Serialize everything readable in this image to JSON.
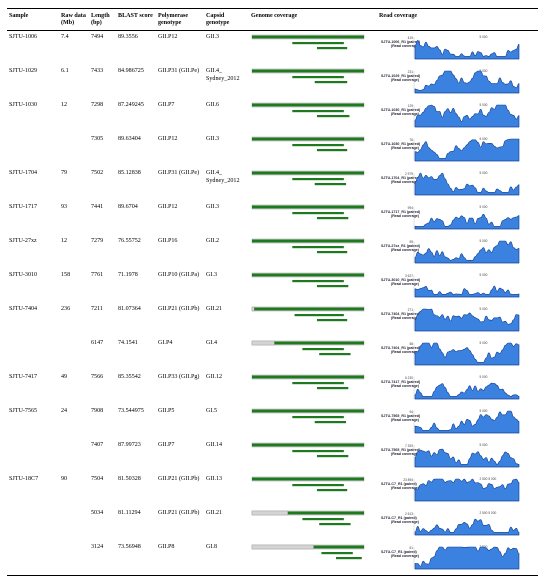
{
  "headers": {
    "sample": "Sample",
    "raw_data": "Raw data (Mb)",
    "length": "Length (bp)",
    "blast": "BLAST score",
    "polymerase": "Polymerase genotype",
    "capsid": "Capsid genotype",
    "genome_cov": "Genome coverage",
    "read_cov": "Read coverage"
  },
  "rows": [
    {
      "sample": "SJTU-1006",
      "raw": "7.4",
      "length": "7494",
      "blast": "89.3556",
      "pol": "GII.P12",
      "cap": "GII.3",
      "track": "SJTU-1006_R1 (paired)",
      "sub": "(Read coverage)",
      "ymax": "419",
      "tick": "5 000"
    },
    {
      "sample": "SJTU-1029",
      "raw": "6.1",
      "length": "7433",
      "blast": "84.986725",
      "pol": "GII.P31 (GII.Pe)",
      "cap": "GII.4_ Sydney_2012",
      "track": "SJTU-1029_R1 (paired)",
      "sub": "(Read coverage)",
      "ymax": "231",
      "tick": "5 000"
    },
    {
      "sample": "SJTU-1030",
      "raw": "12",
      "length": "7298",
      "blast": "87.249245",
      "pol": "GII.P7",
      "cap": "GII.6",
      "track": "SJTU-1030_R1 (paired)",
      "sub": "(Read coverage)",
      "ymax": "129",
      "tick": "5 000"
    },
    {
      "sample": "",
      "raw": "",
      "length": "7305",
      "blast": "89.63404",
      "pol": "GII.P12",
      "cap": "GII.3",
      "track": "SJTU-1030_R1 (paired)",
      "sub": "(Read coverage)",
      "ymax": "76",
      "tick": "5 000"
    },
    {
      "sample": "SJTU-1704",
      "raw": "79",
      "length": "7502",
      "blast": "85.12838",
      "pol": "GII.P31 (GII.Pe)",
      "cap": "GII.4_ Sydney_2012",
      "track": "SJTU-1704_R1 (paired)",
      "sub": "(Read coverage)",
      "ymax": "2 979",
      "tick": "5 000"
    },
    {
      "sample": "SJTU-1717",
      "raw": "93",
      "length": "7441",
      "blast": "89.6704",
      "pol": "GII.P12",
      "cap": "GII.3",
      "track": "SJTU-1717_R1 (paired)",
      "sub": "(Read coverage)",
      "ymax": "994",
      "tick": "5 000"
    },
    {
      "sample": "SJTU-27xz",
      "raw": "12",
      "length": "7279",
      "blast": "76.55752",
      "pol": "GII.P16",
      "cap": "GII.2",
      "track": "SJTU-27xz_R1 (paired)",
      "sub": "(Read coverage)",
      "ymax": "95",
      "tick": "5 000"
    },
    {
      "sample": "SJTU-3010",
      "raw": "158",
      "length": "7761",
      "blast": "71.1978",
      "pol": "GII.P10 (GII.Pa)",
      "cap": "GI.3",
      "track": "SJTU-3010_R1 (paired)",
      "sub": "(Read coverage)",
      "ymax": "3 627",
      "tick": "5 000"
    },
    {
      "sample": "SJTU-7404",
      "raw": "236",
      "length": "7211",
      "blast": "81.07364",
      "pol": "GII.P21 (GII.Pb)",
      "cap": "GII.21",
      "track": "SJTU-7404_R1 (paired)",
      "sub": "(Read coverage)",
      "ymax": "271",
      "tick": "5 000"
    },
    {
      "sample": "",
      "raw": "",
      "length": "6147",
      "blast": "74.1541",
      "pol": "GI.P4",
      "cap": "GI.4",
      "track": "SJTU-7404_R1 (paired)",
      "sub": "(Read coverage)",
      "ymax": "58",
      "tick": "5 000"
    },
    {
      "sample": "SJTU-7417",
      "raw": "49",
      "length": "7566",
      "blast": "85.35542",
      "pol": "GII.P33 (GII.Pg)",
      "cap": "GII.12",
      "track": "SJTU-7417_R1 (paired)",
      "sub": "(Read coverage)",
      "ymax": "6 230",
      "tick": "5 000"
    },
    {
      "sample": "SJTU-7565",
      "raw": "24",
      "length": "7908",
      "blast": "73.544975",
      "pol": "GII.P5",
      "cap": "GI.5",
      "track": "SJTU-7565_R1 (paired)",
      "sub": "(Read coverage)",
      "ymax": "94",
      "tick": "5 000"
    },
    {
      "sample": "",
      "raw": "",
      "length": "7407",
      "blast": "87.99723",
      "pol": "GII.P7",
      "cap": "GII.14",
      "track": "SJTU-7565_R1 (paired)",
      "sub": "(Read coverage)",
      "ymax": "7 393",
      "tick": "5 000"
    },
    {
      "sample": "SJTU-18C7",
      "raw": "90",
      "length": "7504",
      "blast": "81.50328",
      "pol": "GII.P21 (GII.Pb)",
      "cap": "GII.13",
      "track": "SJTU-C7_R1 (paired)",
      "sub": "(Read coverage)",
      "ymax": "23 894",
      "tick": "2 500   5 000"
    },
    {
      "sample": "",
      "raw": "",
      "length": "5034",
      "blast": "81.11294",
      "pol": "GII.P21 (GII.Pb)",
      "cap": "GII.21",
      "track": "SJTU-C7_R1 (paired)",
      "sub": "(Read coverage)",
      "ymax": "2 613",
      "tick": "2 500   5 000"
    },
    {
      "sample": "",
      "raw": "",
      "length": "3124",
      "blast": "73.56948",
      "pol": "GII.P8",
      "cap": "GI.8",
      "track": "SJTU-C7_R1 (paired)",
      "sub": "(Read coverage)",
      "ymax": "61",
      "tick": "2 500"
    }
  ],
  "genome_tracks": [
    {
      "grey_start": 0.0,
      "grey_end": 0.0,
      "g1": [
        0.0,
        1.0
      ],
      "g2": [
        0.36,
        0.82
      ],
      "g3": [
        0.58,
        0.85
      ]
    },
    {
      "grey_start": 0.0,
      "grey_end": 0.0,
      "g1": [
        0.0,
        1.0
      ],
      "g2": [
        0.36,
        0.82
      ],
      "g3": [
        0.56,
        0.85
      ]
    },
    {
      "grey_start": 0.0,
      "grey_end": 0.0,
      "g1": [
        0.0,
        1.0
      ],
      "g2": [
        0.36,
        0.82
      ],
      "g3": [
        0.58,
        0.87
      ]
    },
    {
      "grey_start": 0.0,
      "grey_end": 0.0,
      "g1": [
        0.0,
        1.0
      ],
      "g2": [
        0.36,
        0.82
      ],
      "g3": [
        0.58,
        0.85
      ]
    },
    {
      "grey_start": 0.0,
      "grey_end": 0.0,
      "g1": [
        0.0,
        1.0
      ],
      "g2": [
        0.36,
        0.82
      ],
      "g3": [
        0.56,
        0.84
      ]
    },
    {
      "grey_start": 0.0,
      "grey_end": 0.0,
      "g1": [
        0.0,
        1.0
      ],
      "g2": [
        0.36,
        0.82
      ],
      "g3": [
        0.58,
        0.86
      ]
    },
    {
      "grey_start": 0.0,
      "grey_end": 0.0,
      "g1": [
        0.0,
        1.0
      ],
      "g2": [
        0.36,
        0.82
      ],
      "g3": [
        0.58,
        0.85
      ]
    },
    {
      "grey_start": 0.0,
      "grey_end": 0.0,
      "g1": [
        0.0,
        1.0
      ],
      "g2": [
        0.36,
        0.82
      ],
      "g3": [
        0.58,
        0.86
      ]
    },
    {
      "grey_start": 0.0,
      "grey_end": 0.02,
      "g1": [
        0.02,
        1.0
      ],
      "g2": [
        0.38,
        0.82
      ],
      "g3": [
        0.58,
        0.85
      ]
    },
    {
      "grey_start": 0.0,
      "grey_end": 0.2,
      "g1": [
        0.2,
        1.0
      ],
      "g2": [
        0.45,
        0.82
      ],
      "g3": [
        0.6,
        0.88
      ]
    },
    {
      "grey_start": 0.0,
      "grey_end": 0.0,
      "g1": [
        0.0,
        1.0
      ],
      "g2": [
        0.36,
        0.82
      ],
      "g3": [
        0.58,
        0.86
      ]
    },
    {
      "grey_start": 0.0,
      "grey_end": 0.0,
      "g1": [
        0.0,
        1.0
      ],
      "g2": [
        0.36,
        0.82
      ],
      "g3": [
        0.56,
        0.84
      ]
    },
    {
      "grey_start": 0.0,
      "grey_end": 0.0,
      "g1": [
        0.0,
        1.0
      ],
      "g2": [
        0.36,
        0.82
      ],
      "g3": [
        0.58,
        0.86
      ]
    },
    {
      "grey_start": 0.0,
      "grey_end": 0.0,
      "g1": [
        0.0,
        1.0
      ],
      "g2": [
        0.36,
        0.82
      ],
      "g3": [
        0.58,
        0.85
      ]
    },
    {
      "grey_start": 0.0,
      "grey_end": 0.32,
      "g1": [
        0.32,
        1.0
      ],
      "g2": [
        0.45,
        0.82
      ],
      "g3": [
        0.6,
        0.88
      ]
    },
    {
      "grey_start": 0.0,
      "grey_end": 0.55,
      "g1": [
        0.55,
        1.0
      ],
      "g2": [
        0.62,
        0.9
      ],
      "g3": [
        0.75,
        0.98
      ]
    }
  ],
  "colors": {
    "green": "#1f7a1f",
    "grey": "#d4d4d4",
    "grey_border": "#9a9a9a",
    "cov_dark": "#0b3a8f",
    "cov_light": "#3b82e0"
  }
}
